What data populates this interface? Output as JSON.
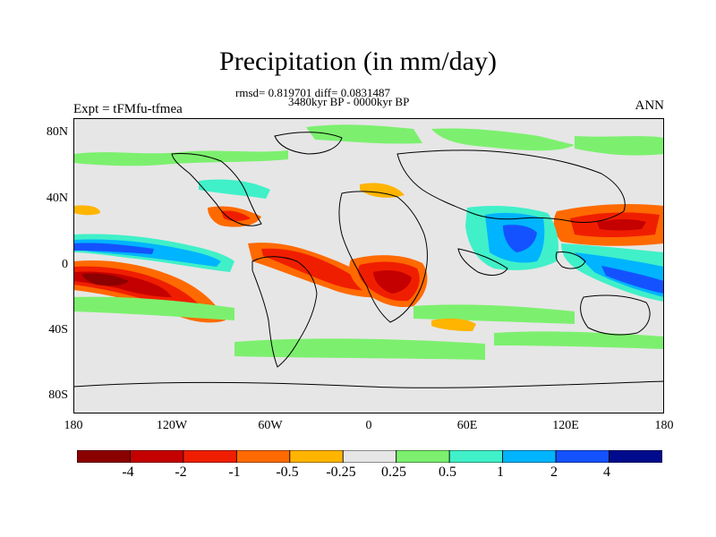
{
  "title": "Precipitation (in mm/day)",
  "stats_line": "rmsd= 0.819701 diff= 0.0831487",
  "period": "3480kyr BP - 0000kyr BP",
  "experiment": "Expt = tFMfu-tfmea",
  "season": "ANN",
  "lat_ticks": [
    "80N",
    "40N",
    "0",
    "40S",
    "80S"
  ],
  "lon_ticks": [
    "180",
    "120W",
    "60W",
    "0",
    "60E",
    "120E",
    "180"
  ],
  "colorbar": {
    "labels": [
      "-4",
      "-2",
      "-1",
      "-0.5",
      "-0.25",
      "0.25",
      "0.5",
      "1",
      "2",
      "4"
    ],
    "colors": [
      "#8b0000",
      "#c40000",
      "#f01e00",
      "#ff6a00",
      "#ffb400",
      "#e6e6e6",
      "#7cf06e",
      "#40f0c8",
      "#00b4ff",
      "#1452ff",
      "#000a8c"
    ]
  },
  "colors": {
    "background": "#e6e6e6",
    "coastline": "#000000"
  }
}
